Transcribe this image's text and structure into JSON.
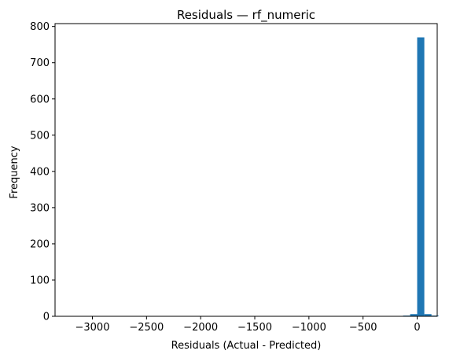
{
  "chart_data": {
    "type": "bar",
    "title": "Residuals — rf_numeric",
    "xlabel": "Residuals (Actual - Predicted)",
    "ylabel": "Frequency",
    "xlim": [
      -3345,
      185
    ],
    "ylim": [
      0,
      808
    ],
    "xticks": [
      -3000,
      -2500,
      -2000,
      -1500,
      -1000,
      -500,
      0
    ],
    "xtick_labels": [
      "−3000",
      "−2500",
      "−2000",
      "−1500",
      "−1000",
      "−500",
      "0"
    ],
    "yticks": [
      0,
      100,
      200,
      300,
      400,
      500,
      600,
      700,
      800
    ],
    "ytick_labels": [
      "0",
      "100",
      "200",
      "300",
      "400",
      "500",
      "600",
      "700",
      "800"
    ],
    "bin_width": 66,
    "bars": [
      {
        "x_start": -3250,
        "value": 1
      },
      {
        "x_start": -2850,
        "value": 1
      },
      {
        "x_start": -2785,
        "value": 1
      },
      {
        "x_start": -2380,
        "value": 1
      },
      {
        "x_start": -2315,
        "value": 1
      },
      {
        "x_start": -2250,
        "value": 1
      },
      {
        "x_start": -390,
        "value": 1
      },
      {
        "x_start": -325,
        "value": 1
      },
      {
        "x_start": -260,
        "value": 1
      },
      {
        "x_start": -130,
        "value": 2
      },
      {
        "x_start": -65,
        "value": 6
      },
      {
        "x_start": 0,
        "value": 770
      },
      {
        "x_start": 66,
        "value": 6
      },
      {
        "x_start": 132,
        "value": 2
      }
    ],
    "color": "#1f77b4",
    "grid": false,
    "legend": "none"
  }
}
